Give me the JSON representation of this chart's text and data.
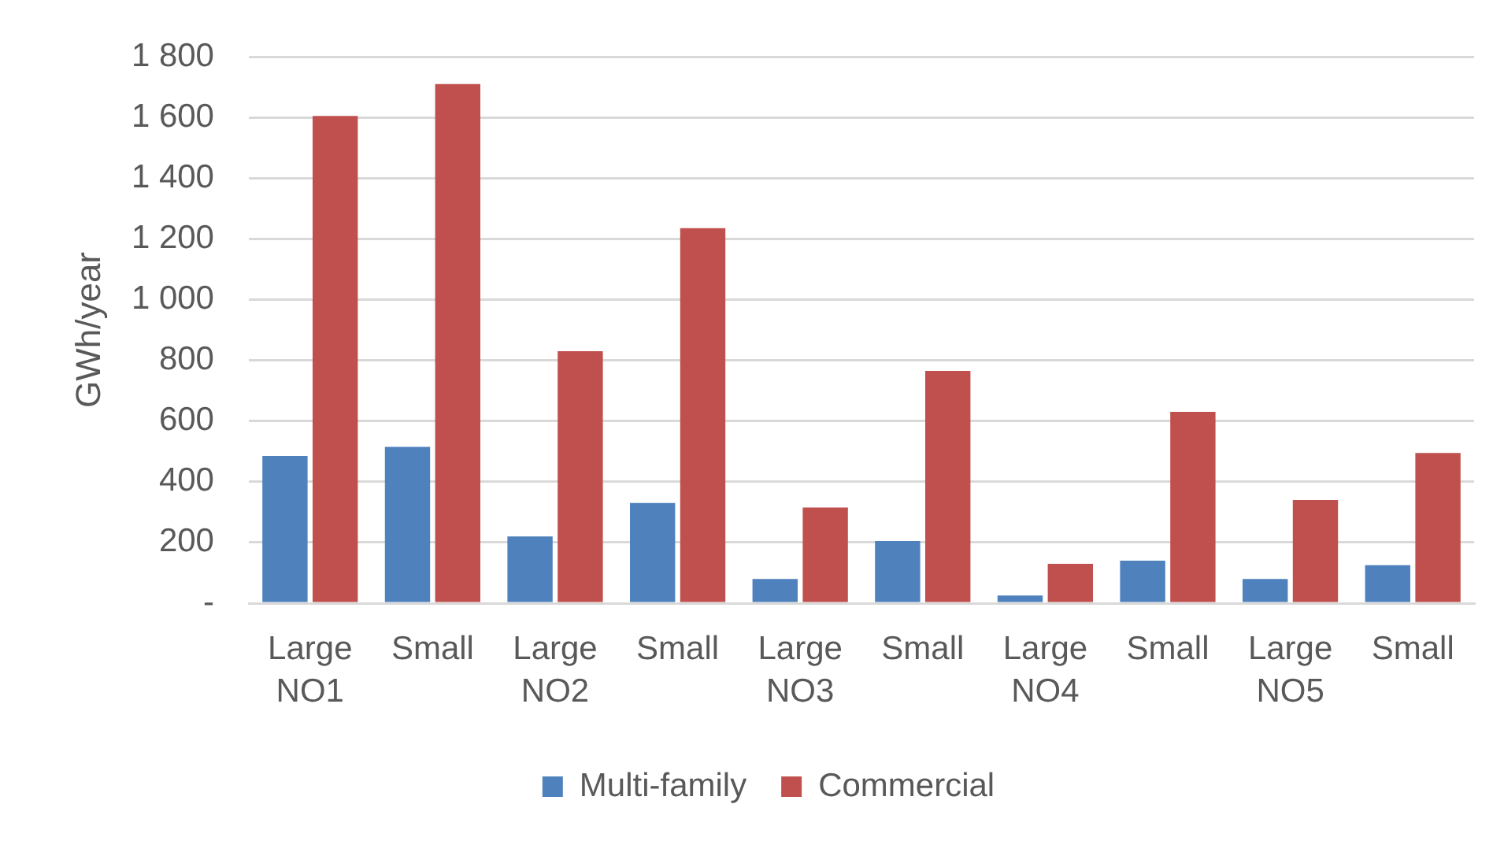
{
  "chart_data": {
    "type": "bar",
    "ylabel": "GWh/year",
    "categories": [
      "Large NO1",
      "Small",
      "Large NO2",
      "Small",
      "Large NO3",
      "Small",
      "Large NO4",
      "Small",
      "Large NO5",
      "Small"
    ],
    "series": [
      {
        "name": "Multi-family",
        "color": "#4f81bd",
        "values": [
          485,
          515,
          220,
          330,
          80,
          205,
          25,
          140,
          80,
          125
        ]
      },
      {
        "name": "Commercial",
        "color": "#c0504d",
        "values": [
          1605,
          1710,
          830,
          1235,
          315,
          765,
          130,
          630,
          340,
          495
        ]
      }
    ],
    "ylim": [
      0,
      1800
    ],
    "yticks": [
      {
        "value": 0,
        "label": "-"
      },
      200,
      400,
      600,
      800,
      {
        "value": 1000,
        "label": "1 000"
      },
      {
        "value": 1200,
        "label": "1 200"
      },
      {
        "value": 1400,
        "label": "1 400"
      },
      {
        "value": 1600,
        "label": "1 600"
      },
      {
        "value": 1800,
        "label": "1 800"
      }
    ],
    "grid": "y",
    "legend": "bottom"
  }
}
